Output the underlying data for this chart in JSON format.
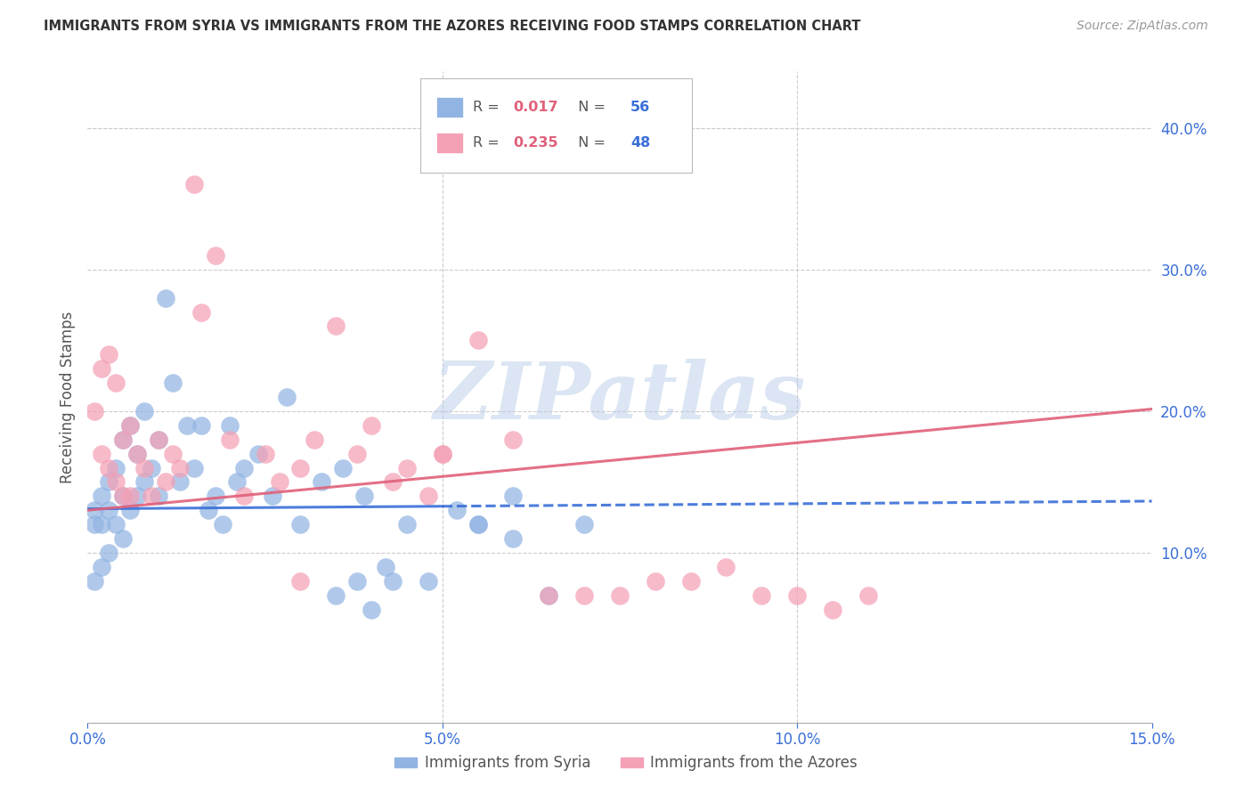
{
  "title": "IMMIGRANTS FROM SYRIA VS IMMIGRANTS FROM THE AZORES RECEIVING FOOD STAMPS CORRELATION CHART",
  "source": "Source: ZipAtlas.com",
  "ylabel": "Receiving Food Stamps",
  "xlim": [
    0.0,
    0.15
  ],
  "ylim": [
    -0.02,
    0.44
  ],
  "xticks": [
    0.0,
    0.05,
    0.1,
    0.15
  ],
  "xticklabels": [
    "0.0%",
    "5.0%",
    "10.0%",
    "15.0%"
  ],
  "yticks_right": [
    0.1,
    0.2,
    0.3,
    0.4
  ],
  "ytick_labels_right": [
    "10.0%",
    "20.0%",
    "30.0%",
    "40.0%"
  ],
  "syria_R": 0.017,
  "syria_N": 56,
  "azores_R": 0.235,
  "azores_N": 48,
  "syria_color": "#92b4e3",
  "azores_color": "#f4a0b5",
  "syria_line_color": "#3a6fd8",
  "azores_line_color": "#e0607a",
  "background_color": "#ffffff",
  "grid_color": "#cccccc",
  "watermark": "ZIPatlas",
  "watermark_color": "#b8cce8",
  "legend_label_syria": "Immigrants from Syria",
  "legend_label_azores": "Immigrants from the Azores",
  "syria_x": [
    0.001,
    0.001,
    0.001,
    0.002,
    0.002,
    0.002,
    0.003,
    0.003,
    0.003,
    0.004,
    0.004,
    0.005,
    0.005,
    0.005,
    0.006,
    0.006,
    0.007,
    0.007,
    0.008,
    0.008,
    0.009,
    0.01,
    0.01,
    0.011,
    0.012,
    0.013,
    0.014,
    0.015,
    0.016,
    0.017,
    0.018,
    0.019,
    0.02,
    0.021,
    0.022,
    0.024,
    0.026,
    0.028,
    0.03,
    0.033,
    0.036,
    0.039,
    0.042,
    0.045,
    0.048,
    0.052,
    0.055,
    0.06,
    0.065,
    0.07,
    0.055,
    0.06,
    0.035,
    0.038,
    0.04,
    0.043
  ],
  "syria_y": [
    0.13,
    0.12,
    0.08,
    0.14,
    0.12,
    0.09,
    0.15,
    0.13,
    0.1,
    0.16,
    0.12,
    0.18,
    0.14,
    0.11,
    0.19,
    0.13,
    0.17,
    0.14,
    0.2,
    0.15,
    0.16,
    0.18,
    0.14,
    0.28,
    0.22,
    0.15,
    0.19,
    0.16,
    0.19,
    0.13,
    0.14,
    0.12,
    0.19,
    0.15,
    0.16,
    0.17,
    0.14,
    0.21,
    0.12,
    0.15,
    0.16,
    0.14,
    0.09,
    0.12,
    0.08,
    0.13,
    0.12,
    0.14,
    0.07,
    0.12,
    0.12,
    0.11,
    0.07,
    0.08,
    0.06,
    0.08
  ],
  "azores_x": [
    0.001,
    0.002,
    0.002,
    0.003,
    0.003,
    0.004,
    0.004,
    0.005,
    0.005,
    0.006,
    0.006,
    0.007,
    0.008,
    0.009,
    0.01,
    0.011,
    0.012,
    0.013,
    0.015,
    0.016,
    0.018,
    0.02,
    0.022,
    0.025,
    0.027,
    0.03,
    0.032,
    0.035,
    0.038,
    0.04,
    0.043,
    0.045,
    0.048,
    0.05,
    0.055,
    0.06,
    0.065,
    0.07,
    0.075,
    0.08,
    0.085,
    0.09,
    0.095,
    0.1,
    0.105,
    0.11,
    0.03,
    0.05
  ],
  "azores_y": [
    0.2,
    0.23,
    0.17,
    0.24,
    0.16,
    0.22,
    0.15,
    0.18,
    0.14,
    0.19,
    0.14,
    0.17,
    0.16,
    0.14,
    0.18,
    0.15,
    0.17,
    0.16,
    0.36,
    0.27,
    0.31,
    0.18,
    0.14,
    0.17,
    0.15,
    0.16,
    0.18,
    0.26,
    0.17,
    0.19,
    0.15,
    0.16,
    0.14,
    0.17,
    0.25,
    0.18,
    0.07,
    0.07,
    0.07,
    0.08,
    0.08,
    0.09,
    0.07,
    0.07,
    0.06,
    0.07,
    0.08,
    0.17
  ],
  "syria_trend_x": [
    0.0,
    0.05
  ],
  "syria_trend_solid_end": 0.05,
  "azores_trend_x0": 0.0,
  "azores_trend_x1": 0.15
}
